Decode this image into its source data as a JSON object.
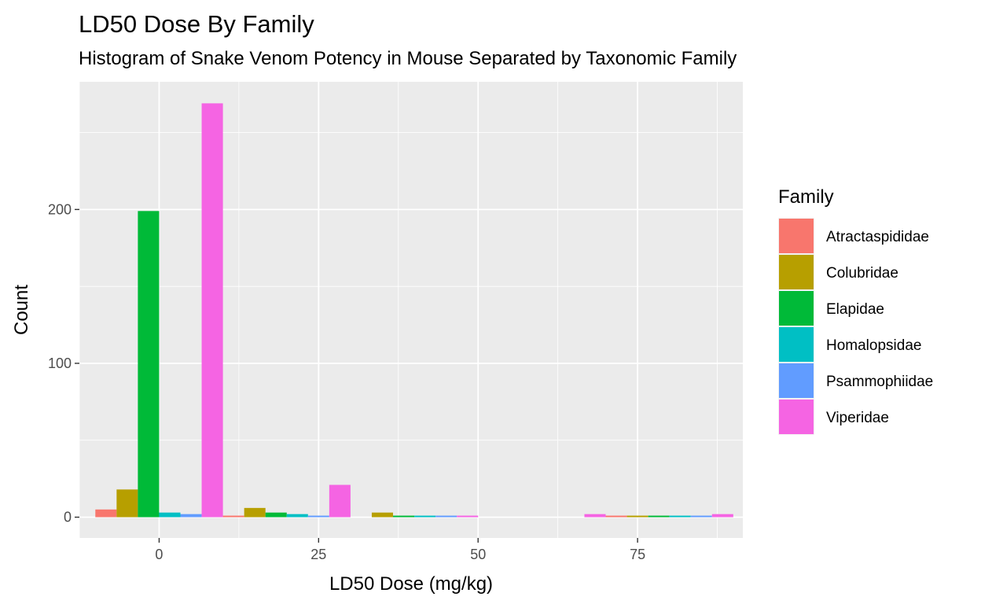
{
  "chart_data": {
    "type": "bar",
    "title": "LD50 Dose By Family",
    "subtitle": "Histogram of Snake Venom Potency in Mouse Separated by Taxonomic Family",
    "xlabel": "LD50 Dose (mg/kg)",
    "ylabel": "Count",
    "xlim": [
      -12.5,
      91.5
    ],
    "ylim": [
      -13.5,
      283
    ],
    "x_ticks": [
      0,
      25,
      50,
      75
    ],
    "x_tick_labels": [
      "0",
      "25",
      "50",
      "75"
    ],
    "y_ticks": [
      0,
      100,
      200
    ],
    "y_tick_labels": [
      "0",
      "100",
      "200"
    ],
    "bin_centers": [
      0,
      20,
      40,
      60,
      80
    ],
    "bin_width": 20,
    "grid": true,
    "legend": {
      "title": "Family",
      "position": "right"
    },
    "series": [
      {
        "name": "Atractaspididae",
        "color": "#F8766D",
        "values": [
          5,
          1,
          0,
          0,
          1
        ]
      },
      {
        "name": "Colubridae",
        "color": "#B79F00",
        "values": [
          18,
          6,
          3,
          0,
          1
        ]
      },
      {
        "name": "Elapidae",
        "color": "#00BA38",
        "values": [
          199,
          3,
          1,
          0,
          1
        ]
      },
      {
        "name": "Homalopsidae",
        "color": "#00BFC4",
        "values": [
          3,
          2,
          1,
          0,
          1
        ]
      },
      {
        "name": "Psammophiidae",
        "color": "#619CFF",
        "values": [
          2,
          1,
          1,
          0,
          1
        ]
      },
      {
        "name": "Viperidae",
        "color": "#F564E3",
        "values": [
          269,
          21,
          1,
          2,
          2
        ]
      }
    ]
  }
}
